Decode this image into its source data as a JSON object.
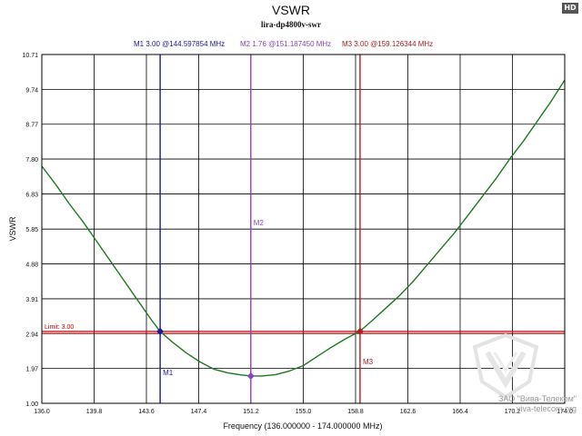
{
  "badge": "HD",
  "chart_data": {
    "type": "line",
    "title": "VSWR",
    "subtitle": "lira-dp4800v-swr",
    "xlabel": "Frequency (136.000000 - 174.000000 MHz)",
    "ylabel": "VSWR",
    "xlim": [
      136.0,
      174.0
    ],
    "ylim": [
      1.0,
      10.71
    ],
    "xticks": [
      136.0,
      139.8,
      143.6,
      147.4,
      151.2,
      155.0,
      158.8,
      162.6,
      166.4,
      170.2,
      174.0
    ],
    "xtick_labels": [
      "136.0",
      "139.8",
      "143.6",
      "147.4",
      "151.2",
      "155.0",
      "158.8",
      "162.6",
      "166.4",
      "170.2",
      "174.0"
    ],
    "yticks": [
      1.0,
      1.97,
      2.94,
      3.91,
      4.88,
      5.85,
      6.83,
      7.8,
      8.77,
      9.74,
      10.71
    ],
    "ytick_labels": [
      "1.00",
      "1.97",
      "2.94",
      "3.91",
      "4.88",
      "5.85",
      "6.83",
      "7.80",
      "8.77",
      "9.74",
      "10.71"
    ],
    "grid": true,
    "series": [
      {
        "name": "VSWR",
        "color": "#1f7a1f",
        "x": [
          136.0,
          137.0,
          138.0,
          139.0,
          140.0,
          141.0,
          142.0,
          143.0,
          144.0,
          144.6,
          145.5,
          146.5,
          147.5,
          148.5,
          149.5,
          150.5,
          151.2,
          152.0,
          153.0,
          154.0,
          155.0,
          156.0,
          157.0,
          158.0,
          159.1,
          160.0,
          161.0,
          162.0,
          163.0,
          164.0,
          165.0,
          166.0,
          167.0,
          168.0,
          169.0,
          170.0,
          171.0,
          172.0,
          173.0,
          174.0
        ],
        "y": [
          7.6,
          7.1,
          6.55,
          6.05,
          5.5,
          4.95,
          4.4,
          3.85,
          3.3,
          3.0,
          2.7,
          2.4,
          2.15,
          1.95,
          1.85,
          1.79,
          1.76,
          1.76,
          1.8,
          1.9,
          2.05,
          2.3,
          2.55,
          2.78,
          3.0,
          3.3,
          3.65,
          4.0,
          4.4,
          4.85,
          5.3,
          5.75,
          6.25,
          6.75,
          7.25,
          7.8,
          8.3,
          8.85,
          9.4,
          10.0
        ]
      }
    ],
    "limit": {
      "label": "Limit: 3.00",
      "value": 3.0,
      "color": "#cc0000"
    },
    "markers_header": [
      {
        "text": "M1  3.00 @144.597854 MHz",
        "color": "#1a1a9c"
      },
      {
        "text": "M2  1.76 @151.187450 MHz",
        "color": "#8e3fc4"
      },
      {
        "text": "M3  3.00 @159.126344 MHz",
        "color": "#b02020"
      }
    ],
    "markers": [
      {
        "label": "M1",
        "x": 144.597854,
        "y": 3.0,
        "color": "#1a1a9c"
      },
      {
        "label": "M2",
        "x": 151.18745,
        "y": 1.76,
        "color": "#8e3fc4"
      },
      {
        "label": "M3",
        "x": 159.126344,
        "y": 3.0,
        "color": "#b02020"
      }
    ]
  },
  "watermark": {
    "company": "ЗАО \"Вива-Телеком\"",
    "site": "viva-telecom.org"
  }
}
